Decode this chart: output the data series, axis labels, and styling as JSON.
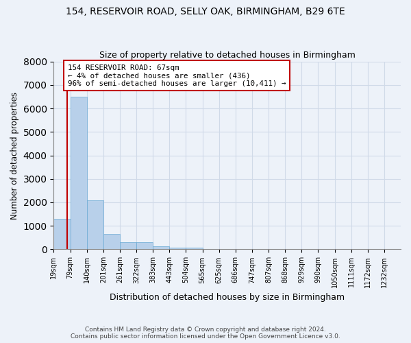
{
  "title": "154, RESERVOIR ROAD, SELLY OAK, BIRMINGHAM, B29 6TE",
  "subtitle": "Size of property relative to detached houses in Birmingham",
  "xlabel": "Distribution of detached houses by size in Birmingham",
  "ylabel": "Number of detached properties",
  "footer_line1": "Contains HM Land Registry data © Crown copyright and database right 2024.",
  "footer_line2": "Contains public sector information licensed under the Open Government Licence v3.0.",
  "bin_labels": [
    "19sqm",
    "79sqm",
    "140sqm",
    "201sqm",
    "261sqm",
    "322sqm",
    "383sqm",
    "443sqm",
    "504sqm",
    "565sqm",
    "625sqm",
    "686sqm",
    "747sqm",
    "807sqm",
    "868sqm",
    "929sqm",
    "990sqm",
    "1050sqm",
    "1111sqm",
    "1172sqm",
    "1232sqm"
  ],
  "bar_values": [
    1300,
    6500,
    2100,
    650,
    300,
    295,
    120,
    80,
    60,
    0,
    0,
    0,
    0,
    0,
    0,
    0,
    0,
    0,
    0,
    0,
    0
  ],
  "bar_color": "#b8d0ea",
  "bar_edge_color": "#6aaad4",
  "highlight_color": "#c00000",
  "annotation_text": "154 RESERVOIR ROAD: 67sqm\n← 4% of detached houses are smaller (436)\n96% of semi-detached houses are larger (10,411) →",
  "annotation_box_color": "#ffffff",
  "annotation_box_edge_color": "#c00000",
  "ylim": [
    0,
    8000
  ],
  "yticks": [
    0,
    1000,
    2000,
    3000,
    4000,
    5000,
    6000,
    7000,
    8000
  ],
  "grid_color": "#d0dae8",
  "background_color": "#edf2f9",
  "axes_background_color": "#edf2f9",
  "property_line_x": 0.5
}
